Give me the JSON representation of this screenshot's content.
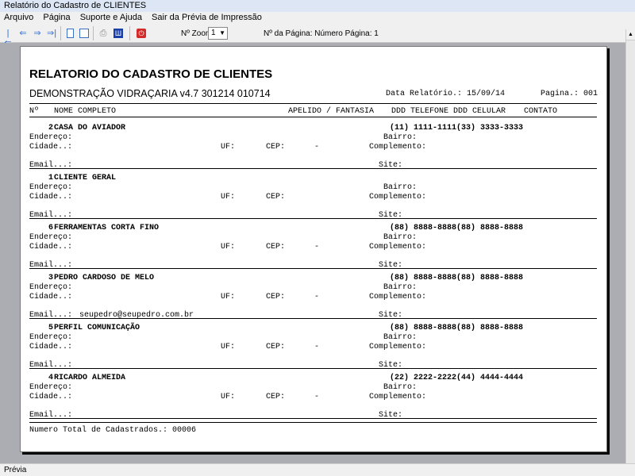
{
  "window": {
    "title": "Relatório do Cadastro de CLIENTES"
  },
  "menu": [
    "Arquivo",
    "Página",
    "Suporte e Ajuda",
    "Sair da Prévia de Impressão"
  ],
  "toolbar": {
    "zoom_label": "Nº Zoom",
    "zoom_value": "1",
    "page_label": "Nº da Página: Número Página: 1"
  },
  "report": {
    "title": "RELATORIO DO CADASTRO DE CLIENTES",
    "subtitle": "DEMONSTRAÇÃO VIDRAÇARIA v4.7 301214 010714",
    "date_label": "Data Relatório.: 15/09/14",
    "page_label": "Pagina.: 001",
    "columns": {
      "num": "Nº",
      "name": "NOME COMPLETO",
      "nick": "APELIDO / FANTASIA",
      "phones": "DDD TELEFONE DDD CELULAR",
      "contact": "CONTATO"
    },
    "labels": {
      "address": "Endereço:",
      "city": "Cidade..:",
      "uf": "UF:",
      "cep": "CEP:",
      "email": "Email...:",
      "bairro": "Bairro:",
      "compl": "Complemento:",
      "site": "Site:"
    },
    "records": [
      {
        "num": "2",
        "name": "CASA DO AVIADOR",
        "phones": "(11) 1111-1111(33) 3333-3333",
        "cep": "-",
        "email": ""
      },
      {
        "num": "1",
        "name": "CLIENTE GERAL",
        "phones": "",
        "cep": "",
        "email": ""
      },
      {
        "num": "6",
        "name": "FERRAMENTAS CORTA FINO",
        "phones": "(88) 8888-8888(88) 8888-8888",
        "cep": "-",
        "email": ""
      },
      {
        "num": "3",
        "name": "PEDRO CARDOSO DE MELO",
        "phones": "(88) 8888-8888(88) 8888-8888",
        "cep": "-",
        "email": "seupedro@seupedro.com.br"
      },
      {
        "num": "5",
        "name": "PERFIL COMUNICAÇÃO",
        "phones": "(88) 8888-8888(88) 8888-8888",
        "cep": "-",
        "email": ""
      },
      {
        "num": "4",
        "name": "RICARDO ALMEIDA",
        "phones": "(22) 2222-2222(44) 4444-4444",
        "cep": "-",
        "email": ""
      }
    ],
    "total": "Numero Total de Cadastrados.: 00006"
  },
  "status": "Prévia"
}
